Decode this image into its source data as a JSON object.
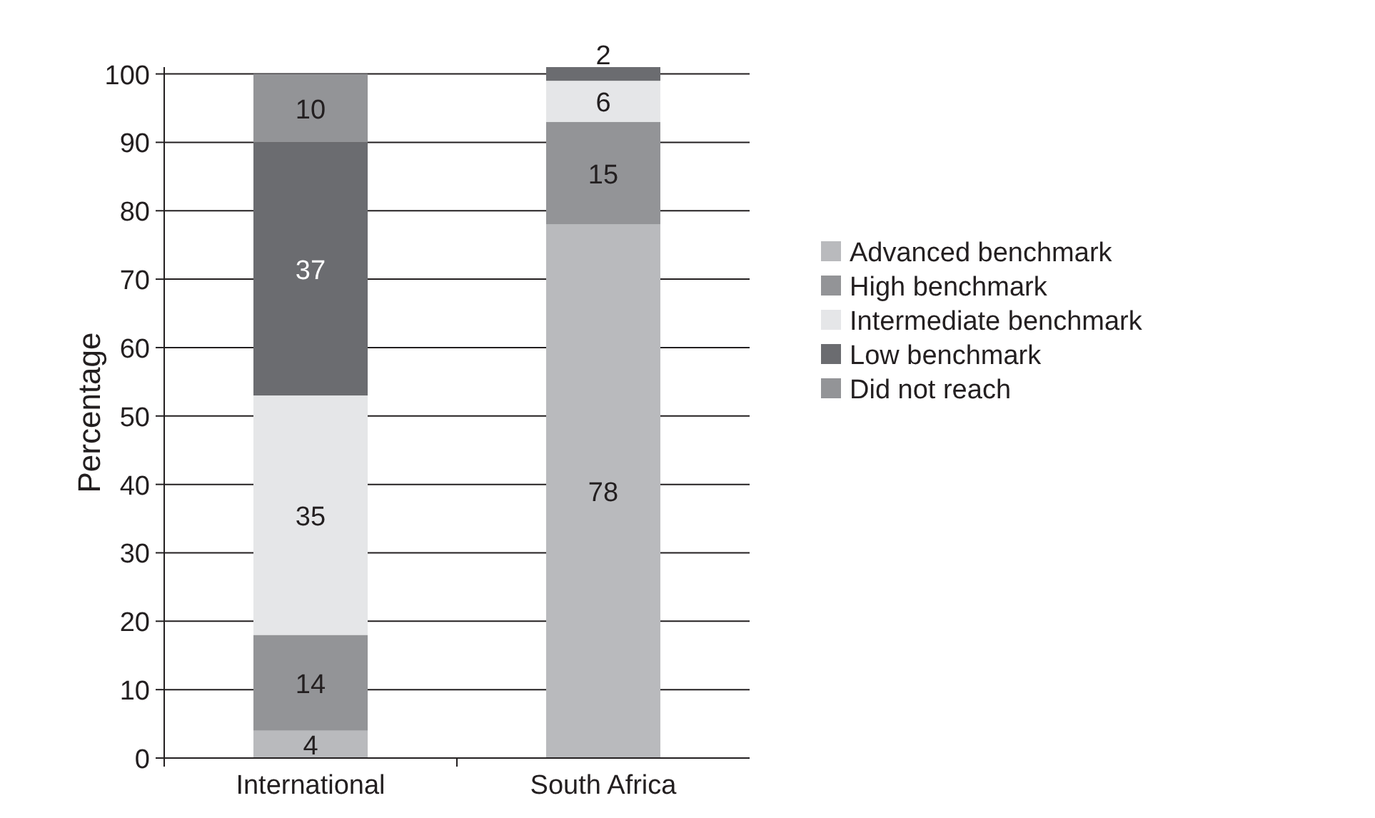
{
  "chart_data": {
    "type": "bar",
    "stacked": true,
    "ylabel": "Percentage",
    "categories": [
      "International",
      "South Africa"
    ],
    "series": [
      {
        "name": "Advanced benchmark",
        "color": "#b9babd",
        "values": [
          4,
          78
        ]
      },
      {
        "name": "High benchmark",
        "color": "#939497",
        "values": [
          14,
          15
        ]
      },
      {
        "name": "Intermediate benchmark",
        "color": "#e5e6e8",
        "values": [
          35,
          6
        ]
      },
      {
        "name": "Low benchmark",
        "color": "#6b6c70",
        "values": [
          37,
          2
        ]
      },
      {
        "name": "Did not reach",
        "color": "#939497",
        "values": [
          10,
          null
        ]
      }
    ],
    "ylim": [
      0,
      101
    ],
    "yticks": [
      0,
      10,
      20,
      30,
      40,
      50,
      60,
      70,
      80,
      90,
      100
    ],
    "grid": "y",
    "legend": "right",
    "data_labels": true
  }
}
